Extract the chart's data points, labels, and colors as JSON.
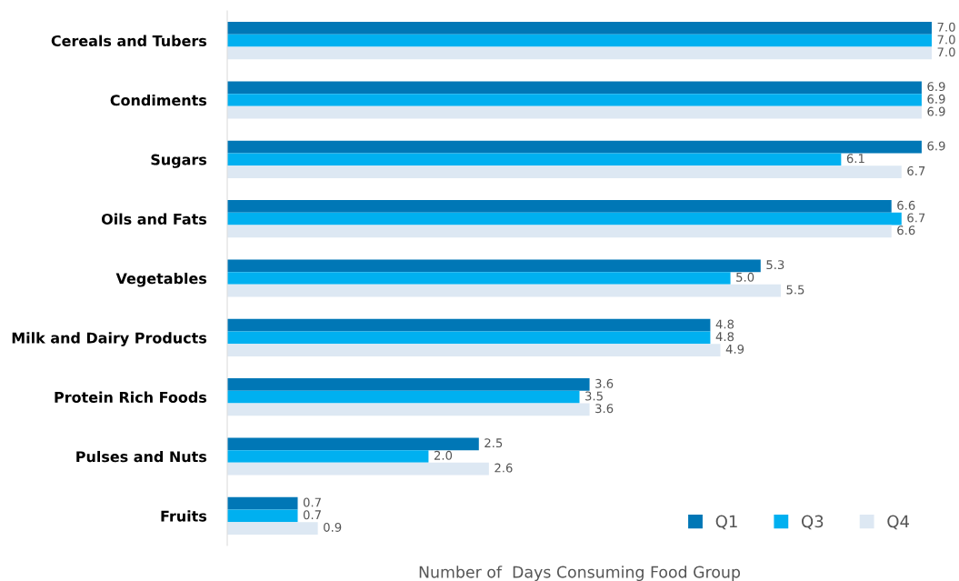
{
  "chart_data": {
    "type": "bar",
    "orientation": "horizontal",
    "xlabel": "Number of  Days Consuming Food Group",
    "categories": [
      "Cereals and Tubers",
      "Condiments",
      "Sugars",
      "Oils and Fats",
      "Vegetables",
      "Milk and Dairy Products",
      "Protein Rich Foods",
      "Pulses and Nuts",
      "Fruits"
    ],
    "series": [
      {
        "name": "Q1",
        "color": "#0077b6",
        "values": [
          7.0,
          6.9,
          6.9,
          6.6,
          5.3,
          4.8,
          3.6,
          2.5,
          0.7
        ],
        "value_labels": [
          "7.0",
          "6.9",
          "6.9",
          "6.6",
          "5.3",
          "4.8",
          "3.6",
          "2.5",
          "0.7"
        ]
      },
      {
        "name": "Q3",
        "color": "#00b0f0",
        "values": [
          7.0,
          6.9,
          6.1,
          6.7,
          5.0,
          4.8,
          3.5,
          2.0,
          0.7
        ],
        "value_labels": [
          "7.0",
          "6.9",
          "6.1",
          "6.7",
          "5.0",
          "4.8",
          "3.5",
          "2.0",
          "0.7"
        ]
      },
      {
        "name": "Q4",
        "color": "#dde8f3",
        "values": [
          7.0,
          6.9,
          6.7,
          6.6,
          5.5,
          4.9,
          3.6,
          2.6,
          0.9
        ],
        "value_labels": [
          "7.0",
          "6.9",
          "6.7",
          "6.6",
          "5.5",
          "4.9",
          "3.6",
          "2.6",
          "0.9"
        ]
      }
    ],
    "legend": "bottom right"
  }
}
